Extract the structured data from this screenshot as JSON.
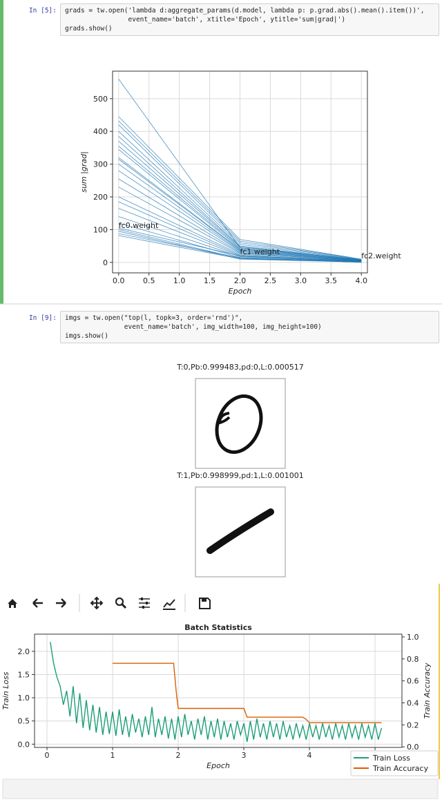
{
  "cells": [
    {
      "prompt": "In [5]:",
      "code": [
        "grads = tw.open('lambda d:aggregate_params(d.model, lambda p: p.grad.abs().mean().item())',",
        "                event_name='batch', xtitle='Epoch', ytitle='sum|grad|')",
        "grads.show()"
      ]
    },
    {
      "prompt": "In [9]:",
      "code": [
        "imgs = tw.open(\"top(l, topk=3, order='rnd')\",",
        "               event_name='batch', img_width=100, img_height=100)",
        "imgs.show()"
      ]
    }
  ],
  "image_outputs": [
    {
      "title": "T:0,Pb:0.999483,pd:0,L:0.000517"
    },
    {
      "title": "T:1,Pb:0.998999,pd:1,L:0.001001"
    }
  ],
  "chart_data": [
    {
      "type": "line",
      "xlabel": "Epoch",
      "ylabel": "sum |grad|",
      "ylabel_color": "#d62728",
      "color": "#1f77b4",
      "grid": true,
      "x": [
        0,
        2,
        4
      ],
      "xlim": [
        -0.1,
        4.1
      ],
      "ylim": [
        -32,
        584
      ],
      "xticks": [
        {
          "value": 0,
          "label": "0.0"
        },
        0.5,
        {
          "value": 1,
          "label": "1.0"
        },
        1.5,
        {
          "value": 2,
          "label": "2.0"
        },
        2.5,
        {
          "value": 3,
          "label": "3.0"
        },
        3.5,
        {
          "value": 4,
          "label": "4.0"
        }
      ],
      "yticks": [
        0,
        100,
        200,
        300,
        400,
        500
      ],
      "series": [
        {
          "values": [
            560,
            45,
            8
          ]
        },
        {
          "values": [
            445,
            70,
            10
          ]
        },
        {
          "values": [
            432,
            65,
            9
          ]
        },
        {
          "values": [
            420,
            60,
            8
          ]
        },
        {
          "values": [
            400,
            55,
            7
          ]
        },
        {
          "values": [
            385,
            50,
            6
          ]
        },
        {
          "values": [
            370,
            48,
            7
          ]
        },
        {
          "values": [
            355,
            45,
            5
          ]
        },
        {
          "values": [
            345,
            42,
            6
          ]
        },
        {
          "values": [
            320,
            40,
            5
          ]
        },
        {
          "values": [
            315,
            38,
            4
          ]
        },
        {
          "values": [
            300,
            35,
            5
          ]
        },
        {
          "values": [
            280,
            33,
            4
          ]
        },
        {
          "values": [
            255,
            30,
            3
          ]
        },
        {
          "values": [
            230,
            28,
            4
          ]
        },
        {
          "values": [
            200,
            25,
            3
          ]
        },
        {
          "values": [
            185,
            22,
            2
          ]
        },
        {
          "values": [
            165,
            20,
            3
          ]
        },
        {
          "values": [
            140,
            18,
            2
          ]
        },
        {
          "values": [
            120,
            15,
            2
          ]
        },
        {
          "values": [
            105,
            20,
            1
          ]
        },
        {
          "values": [
            100,
            12,
            1
          ]
        },
        {
          "values": [
            95,
            10,
            1
          ]
        },
        {
          "values": [
            88,
            14,
            0
          ]
        },
        {
          "values": [
            82,
            11,
            1
          ]
        }
      ],
      "annotations": [
        {
          "text": "fc0.weight",
          "x": 0,
          "y": 105
        },
        {
          "text": "fc1.weight",
          "x": 2,
          "y": 25
        },
        {
          "text": "fc2.weight",
          "x": 4,
          "y": 12
        }
      ]
    },
    {
      "type": "line",
      "title": "Batch Statistics",
      "xlabel": "Epoch",
      "ylabel": "Train Loss",
      "y2label": "Train Accuracy",
      "grid": true,
      "legend": "lower right",
      "xlim": [
        -0.19,
        5.41
      ],
      "ylim": [
        -0.07,
        2.37
      ],
      "y2lim": [
        -0.005,
        1.025
      ],
      "xticks": [
        0,
        1,
        2,
        3,
        4,
        5
      ],
      "yticks": [
        {
          "value": 0,
          "label": "0.0"
        },
        0.5,
        {
          "value": 1,
          "label": "1.0"
        },
        1.5,
        {
          "value": 2,
          "label": "2.0"
        }
      ],
      "y2ticks": [
        {
          "value": 0,
          "label": "0.0"
        },
        0.2,
        0.4,
        0.6,
        0.8,
        {
          "value": 1,
          "label": "1.0"
        }
      ],
      "series": [
        {
          "name": "Train Loss",
          "color": "#1b9e77",
          "x": [
            0.05,
            0.1,
            0.15,
            0.2,
            0.25,
            0.3,
            0.35,
            0.4,
            0.45,
            0.5,
            0.55,
            0.6,
            0.65,
            0.7,
            0.75,
            0.8,
            0.85,
            0.9,
            0.95,
            1,
            1.05,
            1.1,
            1.15,
            1.2,
            1.25,
            1.3,
            1.35,
            1.4,
            1.45,
            1.5,
            1.55,
            1.6,
            1.65,
            1.7,
            1.75,
            1.8,
            1.85,
            1.9,
            1.95,
            2,
            2.05,
            2.1,
            2.15,
            2.2,
            2.25,
            2.3,
            2.35,
            2.4,
            2.45,
            2.5,
            2.55,
            2.6,
            2.65,
            2.7,
            2.75,
            2.8,
            2.85,
            2.9,
            2.95,
            3,
            3.05,
            3.1,
            3.15,
            3.2,
            3.25,
            3.3,
            3.35,
            3.4,
            3.45,
            3.5,
            3.55,
            3.6,
            3.65,
            3.7,
            3.75,
            3.8,
            3.85,
            3.9,
            3.95,
            4,
            4.05,
            4.1,
            4.15,
            4.2,
            4.25,
            4.3,
            4.35,
            4.4,
            4.45,
            4.5,
            4.55,
            4.6,
            4.65,
            4.7,
            4.75,
            4.8,
            4.85,
            4.9,
            4.95,
            5,
            5.05,
            5.1
          ],
          "values": [
            2.2,
            1.75,
            1.45,
            1.25,
            0.85,
            1.15,
            0.6,
            1.25,
            0.45,
            1.1,
            0.35,
            0.95,
            0.3,
            0.85,
            0.25,
            0.8,
            0.2,
            0.7,
            0.22,
            0.7,
            0.18,
            0.75,
            0.2,
            0.6,
            0.15,
            0.65,
            0.25,
            0.55,
            0.15,
            0.6,
            0.2,
            0.8,
            0.15,
            0.55,
            0.2,
            0.6,
            0.12,
            0.55,
            0.1,
            0.6,
            0.15,
            0.65,
            0.2,
            0.5,
            0.1,
            0.55,
            0.2,
            0.6,
            0.1,
            0.5,
            0.15,
            0.55,
            0.1,
            0.5,
            0.15,
            0.45,
            0.1,
            0.5,
            0.2,
            0.45,
            0.05,
            0.5,
            0.1,
            0.55,
            0.15,
            0.45,
            0.1,
            0.5,
            0.15,
            0.45,
            0.1,
            0.5,
            0.15,
            0.4,
            0.1,
            0.45,
            0.15,
            0.4,
            0.1,
            0.45,
            0.15,
            0.4,
            0.1,
            0.45,
            0.15,
            0.4,
            0.1,
            0.45,
            0.15,
            0.4,
            0.1,
            0.45,
            0.15,
            0.4,
            0.1,
            0.45,
            0.15,
            0.4,
            0.1,
            0.45,
            0.1,
            0.35
          ]
        },
        {
          "name": "Train Accuracy",
          "color": "#d95f02",
          "axis": "y2",
          "x": [
            1,
            1.93,
            1.97,
            2,
            3,
            3.05,
            3.6,
            3.65,
            3.9,
            3.95,
            4,
            5.1
          ],
          "values": [
            0.76,
            0.76,
            0.5,
            0.35,
            0.35,
            0.27,
            0.27,
            0.27,
            0.27,
            0.25,
            0.22,
            0.22
          ]
        }
      ]
    }
  ]
}
